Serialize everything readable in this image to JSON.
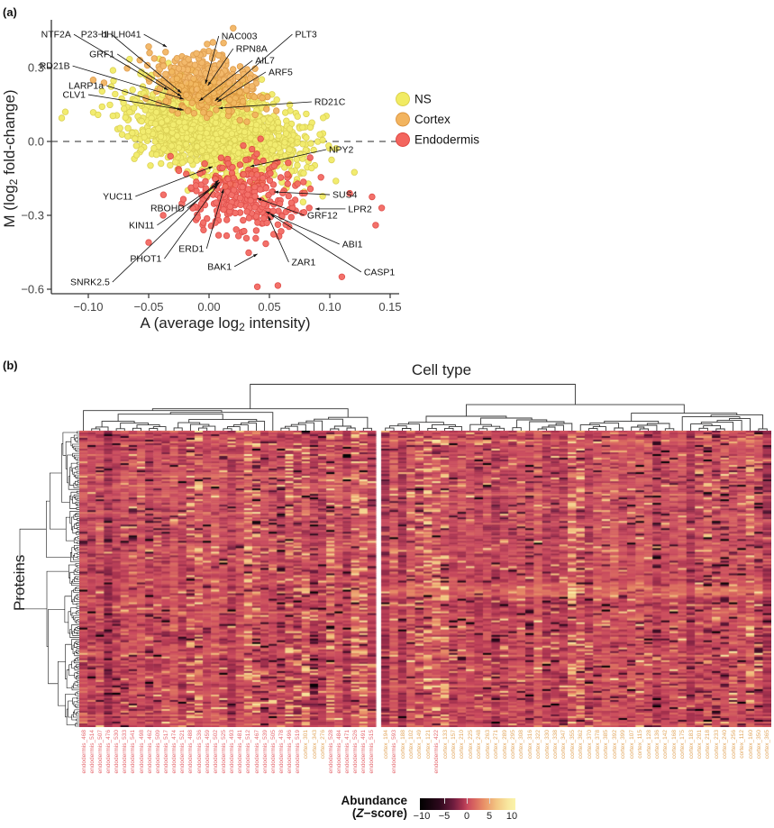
{
  "figure": {
    "panel_a_tag": "(a)",
    "panel_b_tag": "(b)"
  },
  "chart_data": [
    {
      "id": "panel_a",
      "type": "scatter",
      "xlabel": {
        "pre": "A (average log",
        "sub": "2",
        "post": " intensity)"
      },
      "ylabel": {
        "pre": "M (log",
        "sub": "2",
        "post": " fold-change)"
      },
      "xlim": [
        -0.128,
        0.158
      ],
      "ylim": [
        -0.62,
        0.465
      ],
      "x_ticks": [
        {
          "v": -0.1,
          "label": "−0.10"
        },
        {
          "v": -0.05,
          "label": "−0.05"
        },
        {
          "v": 0.0,
          "label": "0.00"
        },
        {
          "v": 0.05,
          "label": "0.05"
        },
        {
          "v": 0.1,
          "label": "0.10"
        },
        {
          "v": 0.15,
          "label": "0.15"
        }
      ],
      "y_ticks": [
        {
          "v": 0.3,
          "label": "0.3"
        },
        {
          "v": 0.0,
          "label": "0.0"
        },
        {
          "v": -0.3,
          "label": "−0.3"
        },
        {
          "v": -0.6,
          "label": "−0.6"
        }
      ],
      "hline": 0.0,
      "seed": 42,
      "groups": [
        {
          "name": "NS",
          "fill": "#F1EB63",
          "stroke": "#D9CE48",
          "n": 1800,
          "center": [
            0.005,
            0.05
          ],
          "sd": [
            0.034,
            0.082
          ],
          "tilt": -0.9,
          "outliers": [
            [
              -0.119,
              0.12
            ],
            [
              -0.122,
              0.095
            ]
          ]
        },
        {
          "name": "Cortex",
          "fill": "#F2B45F",
          "stroke": "#DB943F",
          "n": 400,
          "center": [
            -0.004,
            0.235
          ],
          "sd": [
            0.021,
            0.06
          ],
          "tilt": -0.5,
          "outliers": [
            [
              -0.096,
              0.25
            ],
            [
              -0.087,
              0.238
            ],
            [
              -0.05,
              0.385
            ],
            [
              0.02,
              0.46
            ]
          ]
        },
        {
          "name": "Endodermis",
          "fill": "#F3655E",
          "stroke": "#DE423D",
          "n": 300,
          "center": [
            0.028,
            -0.21
          ],
          "sd": [
            0.026,
            0.075
          ],
          "tilt": -0.5,
          "outliers": [
            [
              0.04,
              -0.59
            ],
            [
              0.057,
              -0.585
            ],
            [
              0.11,
              -0.55
            ],
            [
              -0.05,
              -0.41
            ],
            [
              0.135,
              -0.225
            ],
            [
              0.143,
              -0.27
            ],
            [
              0.138,
              -0.34
            ],
            [
              -0.038,
              -0.3
            ]
          ]
        }
      ],
      "annotations": [
        {
          "label": "NTF2A",
          "ax": -0.112,
          "ay": 0.435,
          "tx": -0.034,
          "ty": 0.209
        },
        {
          "label": "P23−1",
          "ax": -0.081,
          "ay": 0.435,
          "tx": -0.023,
          "ty": 0.198
        },
        {
          "label": "bHLH041",
          "ax": -0.054,
          "ay": 0.435,
          "tx": -0.035,
          "ty": 0.384
        },
        {
          "label": "NAC003",
          "ax": 0.008,
          "ay": 0.428,
          "tx": -0.003,
          "ty": 0.234
        },
        {
          "label": "RPN8A",
          "ax": 0.02,
          "ay": 0.377,
          "tx": -0.001,
          "ty": 0.227
        },
        {
          "label": "PLT3",
          "ax": 0.069,
          "ay": 0.435,
          "tx": 0.005,
          "ty": 0.165
        },
        {
          "label": "GRF1",
          "ax": -0.076,
          "ay": 0.355,
          "tx": -0.023,
          "ty": 0.183
        },
        {
          "label": "RD21B",
          "ax": -0.113,
          "ay": 0.307,
          "tx": -0.021,
          "ty": 0.172
        },
        {
          "label": "AIL7",
          "ax": 0.036,
          "ay": 0.329,
          "tx": -0.008,
          "ty": 0.165
        },
        {
          "label": "ARF5",
          "ax": 0.047,
          "ay": 0.282,
          "tx": 0.007,
          "ty": 0.161
        },
        {
          "label": "LARP1a",
          "ax": -0.085,
          "ay": 0.227,
          "tx": -0.023,
          "ty": 0.128
        },
        {
          "label": "CLV1",
          "ax": -0.1,
          "ay": 0.19,
          "tx": -0.021,
          "ty": 0.128
        },
        {
          "label": "RD21C",
          "ax": 0.085,
          "ay": 0.161,
          "tx": 0.008,
          "ty": 0.135
        },
        {
          "label": "NPY2",
          "ax": 0.097,
          "ay": -0.033,
          "tx": 0.034,
          "ty": -0.102
        },
        {
          "label": "YUC11",
          "ax": -0.061,
          "ay": -0.223,
          "tx": 0.003,
          "ty": -0.102
        },
        {
          "label": "SUS4",
          "ax": 0.1,
          "ay": -0.216,
          "tx": 0.054,
          "ty": -0.205
        },
        {
          "label": "RBOHD",
          "ax": -0.018,
          "ay": -0.271,
          "tx": 0.009,
          "ty": -0.165
        },
        {
          "label": "LPR2",
          "ax": 0.113,
          "ay": -0.274,
          "tx": 0.088,
          "ty": -0.274
        },
        {
          "label": "GRF12",
          "ax": 0.079,
          "ay": -0.3,
          "tx": 0.04,
          "ty": -0.231
        },
        {
          "label": "KIN11",
          "ax": -0.043,
          "ay": -0.34,
          "tx": 0.008,
          "ty": -0.168
        },
        {
          "label": "ABI1",
          "ax": 0.108,
          "ay": -0.417,
          "tx": 0.047,
          "ty": -0.285
        },
        {
          "label": "ERD1",
          "ax": -0.002,
          "ay": -0.435,
          "tx": 0.012,
          "ty": -0.194
        },
        {
          "label": "PHOT1",
          "ax": -0.037,
          "ay": -0.476,
          "tx": 0.007,
          "ty": -0.176
        },
        {
          "label": "BAK1",
          "ax": 0.021,
          "ay": -0.508,
          "tx": 0.04,
          "ty": -0.457
        },
        {
          "label": "ZAR1",
          "ax": 0.066,
          "ay": -0.49,
          "tx": 0.049,
          "ty": -0.304
        },
        {
          "label": "CASP1",
          "ax": 0.126,
          "ay": -0.53,
          "tx": 0.051,
          "ty": -0.296
        },
        {
          "label": "SNRK2.5",
          "ax": -0.08,
          "ay": -0.571,
          "tx": 0.008,
          "ty": -0.157
        }
      ]
    },
    {
      "id": "panel_b",
      "type": "heatmap",
      "title": "Cell type",
      "row_label": "Proteins",
      "n_rows": 164,
      "value_range": [
        -10,
        10
      ],
      "seed": 7,
      "colorbar": {
        "label_line1": "Abundance",
        "label_z_pre": "(",
        "label_z": "Z",
        "label_z_post": "−score)",
        "ticks": [
          -10,
          -5,
          0,
          5,
          10
        ],
        "stops": [
          [
            -10,
            "#000000"
          ],
          [
            -6,
            "#2b081b"
          ],
          [
            -3,
            "#6e1c3e"
          ],
          [
            -1,
            "#aa3450"
          ],
          [
            0,
            "#c94a5e"
          ],
          [
            1.5,
            "#d96860"
          ],
          [
            3.5,
            "#e99268"
          ],
          [
            6,
            "#f3c582"
          ],
          [
            8.5,
            "#f8e8a0"
          ],
          [
            10,
            "#faf3aa"
          ]
        ]
      },
      "label_colors": {
        "endodermis": "#e4696f",
        "cortex": "#e2a75f"
      },
      "texture": {
        "left_light_cols": [
          13,
          14,
          20,
          21,
          25,
          26,
          27,
          30,
          33,
          34
        ],
        "left_dark_cols": [
          24,
          28
        ],
        "right_light_cols": [
          4,
          5,
          6,
          7,
          22,
          23,
          43
        ],
        "right_dark_cols": [
          17,
          32,
          38,
          39,
          40,
          44
        ],
        "right_pale_rows": [
          84,
          91
        ]
      },
      "col_groups": [
        {
          "block": "left",
          "labels": [
            "endodermis_468",
            "endodermis_514",
            "endodermis_507",
            "endodermis_476",
            "endodermis_530",
            "endodermis_533",
            "endodermis_541",
            "endodermis_498",
            "endodermis_462",
            "endodermis_509",
            "endodermis_517",
            "endodermis_474",
            "endodermis_521",
            "endodermis_488",
            "endodermis_536",
            "endodermis_459",
            "endodermis_502",
            "endodermis_525",
            "endodermis_493",
            "endodermis_481",
            "endodermis_512",
            "endodermis_467",
            "endodermis_539",
            "endodermis_505",
            "endodermis_478",
            "endodermis_496",
            "endodermis_519",
            "cortex_301",
            "cortex_343",
            "cortex_276",
            "endodermis_528",
            "endodermis_484",
            "endodermis_471",
            "endodermis_526",
            "endodermis_491",
            "endodermis_515"
          ]
        },
        {
          "block": "right",
          "labels": [
            "cortex_194",
            "endodermis_593",
            "cortex_188",
            "cortex_102",
            "cortex_149",
            "cortex_121",
            "endodermis_422",
            "cortex_133",
            "cortex_157",
            "cortex_210",
            "cortex_225",
            "cortex_248",
            "cortex_263",
            "cortex_271",
            "cortex_289",
            "cortex_295",
            "cortex_308",
            "cortex_316",
            "cortex_322",
            "cortex_330",
            "cortex_338",
            "cortex_347",
            "cortex_355",
            "cortex_362",
            "cortex_370",
            "cortex_378",
            "cortex_385",
            "cortex_392",
            "cortex_399",
            "cortex_107",
            "cortex_115",
            "cortex_128",
            "cortex_136",
            "cortex_142",
            "cortex_168",
            "cortex_175",
            "cortex_183",
            "cortex_201",
            "cortex_218",
            "cortex_233",
            "cortex_240",
            "cortex_256",
            "cortex_112",
            "cortex_160",
            "cortex_350",
            "cortex_365"
          ]
        }
      ]
    }
  ]
}
